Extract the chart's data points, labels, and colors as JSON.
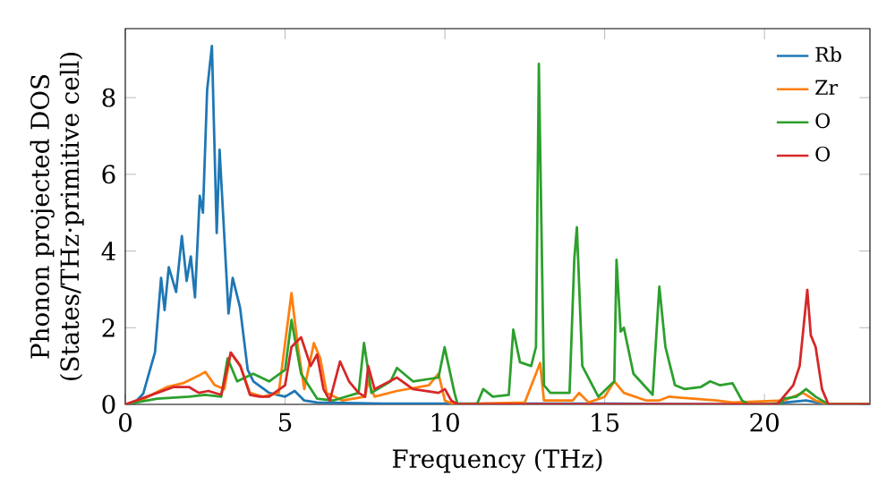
{
  "chart_data": {
    "type": "line",
    "xlabel": "Frequency (THz)",
    "ylabel": "Phonon projected DOS\n(States/THz·primitive cell)",
    "xlim": [
      0,
      23.3
    ],
    "ylim": [
      0,
      9.8
    ],
    "xticks": [
      0,
      5,
      10,
      15,
      20
    ],
    "yticks": [
      0,
      2,
      4,
      6,
      8
    ],
    "legend": "top right",
    "grid": false,
    "series": [
      {
        "name": "Rb",
        "color": "#1f77b4",
        "x": [
          0,
          0.3,
          0.56,
          0.93,
          1.12,
          1.23,
          1.36,
          1.59,
          1.77,
          1.92,
          2.05,
          2.18,
          2.33,
          2.43,
          2.56,
          2.71,
          2.86,
          2.95,
          3.23,
          3.36,
          3.59,
          3.83,
          4.01,
          4.5,
          5.0,
          5.3,
          5.6,
          6.0,
          8,
          10,
          12,
          15,
          20,
          21.3,
          22,
          23.3
        ],
        "values": [
          0,
          0.05,
          0.28,
          1.36,
          3.3,
          2.46,
          3.58,
          2.93,
          4.39,
          3.22,
          3.86,
          2.79,
          5.44,
          5.0,
          8.19,
          9.35,
          4.47,
          6.64,
          2.37,
          3.3,
          2.53,
          0.9,
          0.6,
          0.3,
          0.2,
          0.35,
          0.1,
          0.05,
          0.02,
          0.02,
          0.02,
          0.02,
          0,
          0.1,
          0,
          0
        ]
      },
      {
        "name": "Zr",
        "color": "#ff7f0e",
        "x": [
          0,
          0.5,
          0.93,
          1.3,
          1.8,
          2.3,
          2.5,
          2.8,
          3.1,
          3.3,
          3.6,
          3.9,
          4.3,
          4.8,
          5.2,
          5.4,
          5.6,
          5.9,
          6.1,
          6.3,
          6.8,
          7.5,
          7.6,
          7.8,
          8.5,
          9.5,
          9.8,
          10.0,
          10.3,
          12.5,
          12.98,
          13.1,
          14.0,
          14.2,
          14.5,
          15.0,
          15.3,
          15.6,
          16.3,
          16.7,
          17.0,
          18.5,
          19.0,
          20.6,
          21.2,
          21.6,
          22.0,
          23.3
        ],
        "values": [
          0,
          0.1,
          0.3,
          0.45,
          0.55,
          0.75,
          0.85,
          0.5,
          0.4,
          1.35,
          1.0,
          0.3,
          0.2,
          0.3,
          2.9,
          1.5,
          0.4,
          1.6,
          1.2,
          0.3,
          0.1,
          0.2,
          0.6,
          0.2,
          0.35,
          0.5,
          0.8,
          0.1,
          0,
          0.05,
          1.08,
          0.1,
          0.1,
          0.3,
          0.05,
          0.2,
          0.6,
          0.3,
          0.1,
          0.1,
          0.2,
          0.1,
          0.05,
          0.1,
          0.3,
          0.1,
          0,
          0
        ]
      },
      {
        "name": "O",
        "color": "#2ca02c",
        "x": [
          0,
          1,
          2,
          2.5,
          3,
          3.2,
          3.5,
          4.0,
          4.5,
          5.0,
          5.2,
          5.5,
          6.0,
          6.5,
          7.3,
          7.47,
          7.7,
          8.3,
          8.5,
          9.0,
          9.8,
          9.99,
          10.3,
          10.4,
          11.0,
          11.2,
          11.5,
          12.0,
          12.14,
          12.35,
          12.7,
          12.85,
          12.94,
          13.1,
          13.3,
          13.9,
          14.05,
          14.13,
          14.3,
          14.8,
          15.3,
          15.37,
          15.5,
          15.6,
          15.7,
          15.9,
          16.5,
          16.71,
          16.9,
          17.2,
          17.5,
          18.0,
          18.3,
          18.6,
          19.0,
          19.3,
          19.5,
          20.5,
          20.6,
          21.0,
          21.3,
          21.6,
          22.0,
          23.3
        ],
        "values": [
          0,
          0.15,
          0.2,
          0.25,
          0.2,
          1.2,
          0.6,
          0.8,
          0.6,
          0.9,
          2.2,
          0.8,
          0.15,
          0.1,
          0.3,
          1.6,
          0.3,
          0.6,
          0.95,
          0.6,
          0.7,
          1.49,
          0.3,
          0,
          0,
          0.4,
          0.2,
          0.25,
          1.95,
          1.1,
          1.0,
          1.5,
          8.88,
          0.5,
          0.3,
          0.3,
          3.8,
          4.62,
          1.0,
          0.2,
          0.6,
          3.77,
          1.9,
          2.0,
          1.6,
          0.8,
          0.25,
          3.07,
          1.5,
          0.5,
          0.4,
          0.45,
          0.6,
          0.5,
          0.55,
          0.1,
          0,
          0,
          0.15,
          0.2,
          0.4,
          0.2,
          0,
          0
        ]
      },
      {
        "name": "O",
        "color": "#d62728",
        "x": [
          0,
          1,
          1.5,
          2,
          2.3,
          2.6,
          3,
          3.3,
          3.6,
          3.9,
          4.2,
          4.5,
          5.0,
          5.2,
          5.5,
          5.8,
          6.0,
          6.2,
          6.4,
          6.72,
          7.0,
          7.3,
          7.5,
          7.6,
          7.8,
          8.5,
          9.0,
          9.8,
          10.0,
          10.2,
          10.4,
          20.4,
          20.9,
          21.1,
          21.34,
          21.45,
          21.6,
          21.8,
          22.0,
          23.3
        ],
        "values": [
          0,
          0.3,
          0.45,
          0.45,
          0.3,
          0.35,
          0.25,
          1.35,
          1.0,
          0.25,
          0.2,
          0.2,
          0.5,
          1.5,
          1.75,
          1.0,
          1.3,
          0.4,
          0.1,
          1.12,
          0.6,
          0.3,
          0.2,
          1.0,
          0.4,
          0.7,
          0.4,
          0.3,
          0.4,
          0.1,
          0,
          0,
          0.5,
          1.0,
          2.99,
          1.8,
          1.5,
          0.4,
          0,
          0
        ]
      }
    ]
  }
}
